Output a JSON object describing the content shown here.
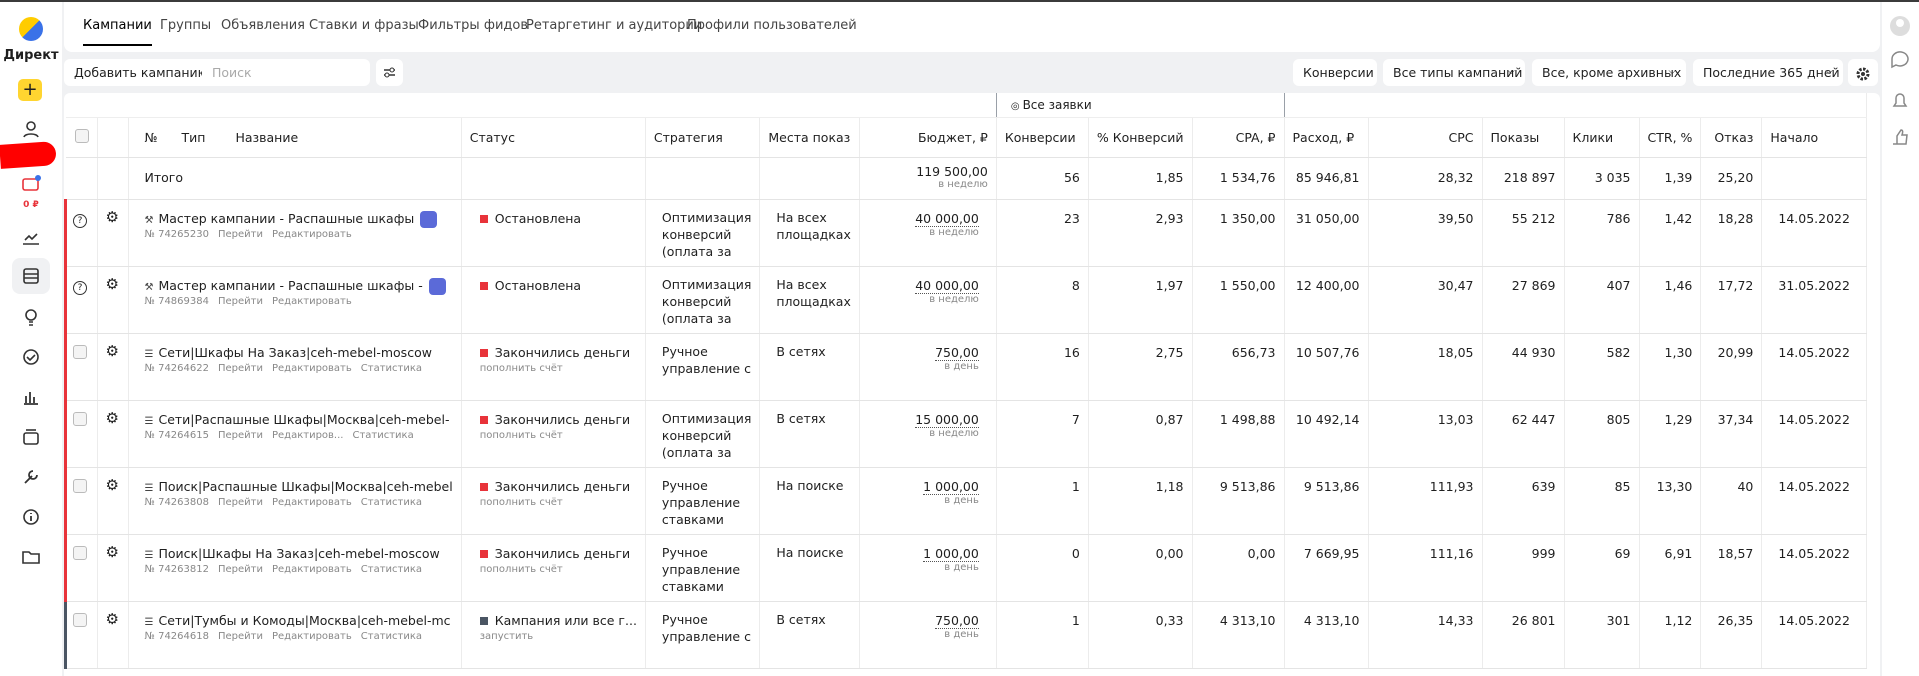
{
  "sidebar": {
    "logo": "Директ",
    "balance": "0 ₽"
  },
  "tabs": [
    "Кампании",
    "Группы",
    "Объявления",
    "Ставки и фразы",
    "Фильтры фидов",
    "Ретаргетинг и аудитории",
    "Профили пользователей"
  ],
  "active_tab": 0,
  "toolbar": {
    "add_button": "Добавить кампанию",
    "search_placeholder": "Поиск",
    "filters": [
      "Конверсии",
      "Все типы кампаний",
      "Все, кроме архивных",
      "Последние 365 дней"
    ]
  },
  "table": {
    "goal_label": "Все заявки",
    "columns": [
      "№",
      "Тип",
      "Название",
      "Статус",
      "Стратегия",
      "Места показ",
      "Бюджет, ₽",
      "Конверсии",
      "% Конверсий",
      "CPA, ₽",
      "Расход, ₽",
      "CPC",
      "Показы",
      "Клики",
      "CTR, %",
      "Отказ",
      "Начало"
    ],
    "total": {
      "label": "Итого",
      "budget": "119 500,00",
      "budget_period": "в неделю",
      "conversions": "56",
      "conversion_rate": "1,85",
      "cpa": "1 534,76",
      "spend": "85 946,81",
      "cpc": "28,32",
      "impressions": "218 897",
      "clicks": "3 035",
      "ctr": "1,39",
      "bounce_rate": "25,20"
    },
    "rows": [
      {
        "name": "Мастер кампании - Распашные шкафы",
        "number": "№ 74265230",
        "links": [
          "Перейти",
          "Редактировать"
        ],
        "status": "Остановлена",
        "status_color": "#e8333a",
        "strategy": "Оптимизация конверсий (оплата за",
        "places": "На всех площадках",
        "budget": "40 000,00",
        "budget_period": "в неделю",
        "conversions": "23",
        "conversion_rate": "2,93",
        "cpa": "1 350,00",
        "spend": "31 050,00",
        "cpc": "39,50",
        "impressions": "55 212",
        "clicks": "786",
        "ctr": "1,42",
        "bounce_rate": "18,28",
        "start_date": "14.05.2022"
      },
      {
        "name": "Мастер кампании - Распашные шкафы -",
        "number": "№ 74869384",
        "links": [
          "Перейти",
          "Редактировать"
        ],
        "status": "Остановлена",
        "status_color": "#e8333a",
        "strategy": "Оптимизация конверсий (оплата за",
        "places": "На всех площадках",
        "budget": "40 000,00",
        "budget_period": "в неделю",
        "conversions": "8",
        "conversion_rate": "1,97",
        "cpa": "1 550,00",
        "spend": "12 400,00",
        "cpc": "30,47",
        "impressions": "27 869",
        "clicks": "407",
        "ctr": "1,46",
        "bounce_rate": "17,72",
        "start_date": "31.05.2022"
      },
      {
        "name": "Сети|Шкафы На Заказ|ceh-mebel-moscow",
        "number": "№ 74264622",
        "links": [
          "Перейти",
          "Редактировать",
          "Статистика"
        ],
        "status": "Закончились деньги",
        "status_action": "пополнить счёт",
        "status_color": "#e8333a",
        "strategy": "Ручное управление с",
        "places": "В сетях",
        "budget": "750,00",
        "budget_period": "в день",
        "conversions": "16",
        "conversion_rate": "2,75",
        "cpa": "656,73",
        "spend": "10 507,76",
        "cpc": "18,05",
        "impressions": "44 930",
        "clicks": "582",
        "ctr": "1,30",
        "bounce_rate": "20,99",
        "start_date": "14.05.2022"
      },
      {
        "name": "Сети|Распашные Шкафы|Москва|ceh-mebel-",
        "number": "№ 74264615",
        "links": [
          "Перейти",
          "Редактиров...",
          "Статистика"
        ],
        "status": "Закончились деньги",
        "status_action": "пополнить счёт",
        "status_color": "#e8333a",
        "strategy": "Оптимизация конверсий (оплата за",
        "places": "В сетях",
        "budget": "15 000,00",
        "budget_period": "в неделю",
        "conversions": "7",
        "conversion_rate": "0,87",
        "cpa": "1 498,88",
        "spend": "10 492,14",
        "cpc": "13,03",
        "impressions": "62 447",
        "clicks": "805",
        "ctr": "1,29",
        "bounce_rate": "37,34",
        "start_date": "14.05.2022"
      },
      {
        "name": "Поиск|Распашные Шкафы|Москва|ceh-mebel",
        "number": "№ 74263808",
        "links": [
          "Перейти",
          "Редактировать",
          "Статистика"
        ],
        "status": "Закончились деньги",
        "status_action": "пополнить счёт",
        "status_color": "#e8333a",
        "strategy": "Ручное управление ставками",
        "places": "На поиске",
        "budget": "1 000,00",
        "budget_period": "в день",
        "conversions": "1",
        "conversion_rate": "1,18",
        "cpa": "9 513,86",
        "spend": "9 513,86",
        "cpc": "111,93",
        "impressions": "639",
        "clicks": "85",
        "ctr": "13,30",
        "bounce_rate": "40",
        "start_date": "14.05.2022"
      },
      {
        "name": "Поиск|Шкафы На Заказ|ceh-mebel-moscow",
        "number": "№ 74263812",
        "links": [
          "Перейти",
          "Редактировать",
          "Статистика"
        ],
        "status": "Закончились деньги",
        "status_action": "пополнить счёт",
        "status_color": "#e8333a",
        "strategy": "Ручное управление ставками",
        "places": "На поиске",
        "budget": "1 000,00",
        "budget_period": "в день",
        "conversions": "0",
        "conversion_rate": "0,00",
        "cpa": "0,00",
        "spend": "7 669,95",
        "cpc": "111,16",
        "impressions": "999",
        "clicks": "69",
        "ctr": "6,91",
        "bounce_rate": "18,57",
        "start_date": "14.05.2022"
      },
      {
        "name": "Сети|Тумбы и Комоды|Москва|ceh-mebel-mc",
        "number": "№ 74264618",
        "links": [
          "Перейти",
          "Редактировать",
          "Статистика"
        ],
        "status": "Кампания или все г...",
        "status_action": "запустить",
        "status_color": "#4a5563",
        "strategy": "Ручное управление с",
        "places": "В сетях",
        "budget": "750,00",
        "budget_period": "в день",
        "conversions": "1",
        "conversion_rate": "0,33",
        "cpa": "4 313,10",
        "spend": "4 313,10",
        "cpc": "14,33",
        "impressions": "26 801",
        "clicks": "301",
        "ctr": "1,12",
        "bounce_rate": "26,35",
        "start_date": "14.05.2022"
      }
    ]
  }
}
